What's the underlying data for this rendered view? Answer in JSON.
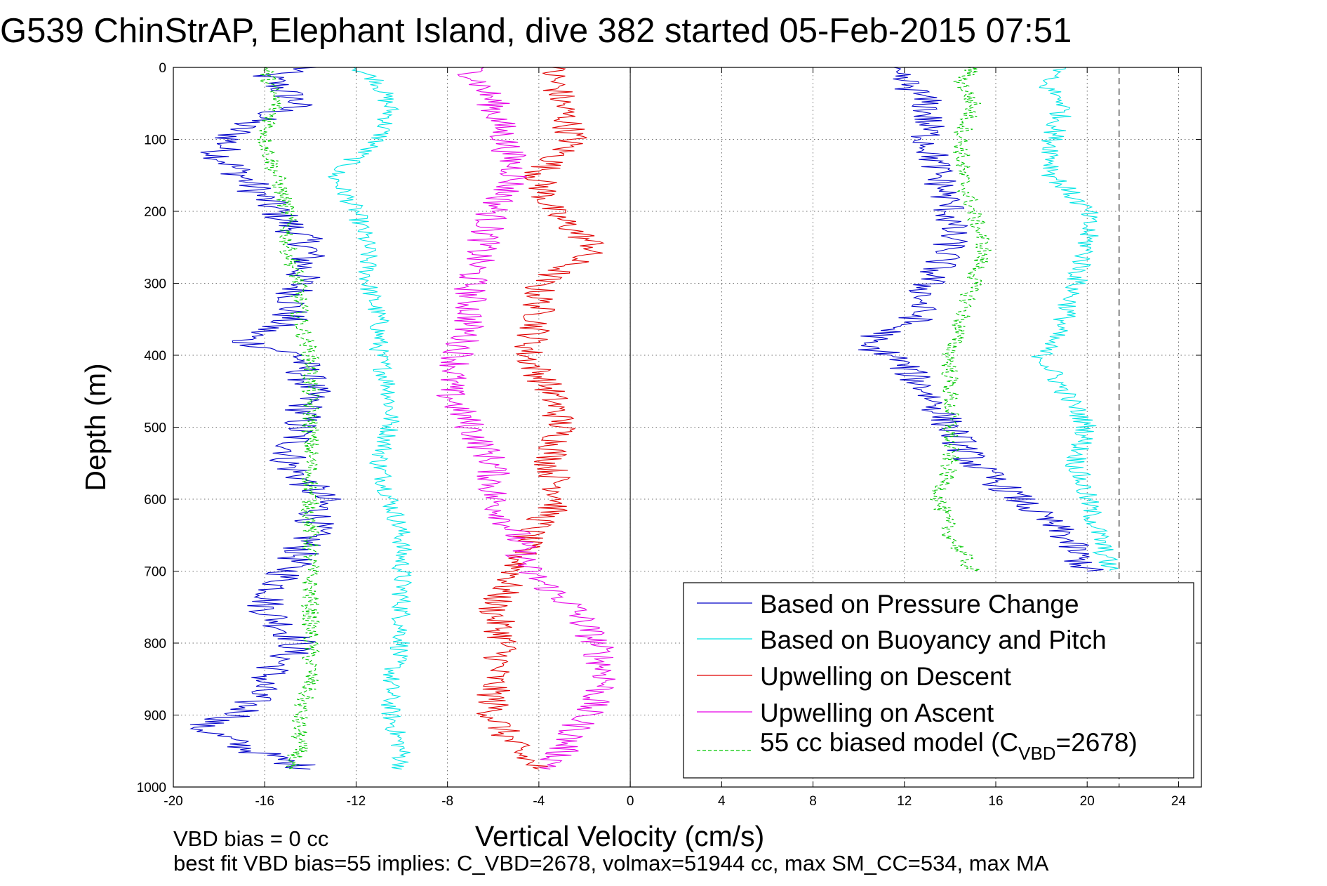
{
  "title": "G539 ChinStrAP, Elephant Island, dive 382 started 05-Feb-2015 07:51",
  "footer": {
    "line1": "VBD bias = 0 cc",
    "line2": "best fit VBD bias=55 implies: C_VBD=2678, volmax=51944 cc, max SM_CC=534, max MA"
  },
  "colors": {
    "pressure": "#0000c8",
    "buoyancy": "#00e5e5",
    "descent": "#e00000",
    "ascent": "#e600e6",
    "model": "#00c800"
  },
  "chart_data": {
    "type": "line",
    "title": "G539 ChinStrAP, Elephant Island, dive 382 started 05-Feb-2015 07:51",
    "xlabel": "Vertical Velocity (cm/s)",
    "ylabel": "Depth (m)",
    "xlim": [
      -20,
      25
    ],
    "ylim": [
      0,
      1000
    ],
    "y_reversed": true,
    "grid": true,
    "xticks": [
      "-20",
      "-16",
      "-12",
      "-8",
      "-4",
      "0",
      "4",
      "8",
      "12",
      "16",
      "20",
      "24"
    ],
    "xtick_values": [
      -20,
      -16,
      -12,
      -8,
      -4,
      0,
      4,
      8,
      12,
      16,
      20,
      24
    ],
    "yticks": [
      "0",
      "100",
      "200",
      "300",
      "400",
      "500",
      "600",
      "700",
      "800",
      "900",
      "1000"
    ],
    "ytick_values": [
      0,
      100,
      200,
      300,
      400,
      500,
      600,
      700,
      800,
      900,
      1000
    ],
    "reference_lines": [
      {
        "x": 0,
        "style": "solid"
      },
      {
        "x": 21.4,
        "style": "dashed"
      }
    ],
    "legend_position": "bottom-right",
    "legend": [
      {
        "label": "Based on Pressure Change",
        "series": "pressure"
      },
      {
        "label": "Based on Buoyancy and Pitch",
        "series": "buoyancy"
      },
      {
        "label": "Upwelling on Descent",
        "series": "descent"
      },
      {
        "label": "Upwelling on Ascent",
        "series": "ascent"
      },
      {
        "label": "55 cc biased model (C",
        "sub": "VBD",
        "tail": "=2678)",
        "series": "model"
      }
    ],
    "series": [
      {
        "key": "pressure-down",
        "color_key": "pressure",
        "jitter": 0.9,
        "depth": [
          0,
          10,
          50,
          80,
          120,
          150,
          200,
          250,
          300,
          350,
          380,
          400,
          450,
          500,
          550,
          600,
          650,
          700,
          750,
          800,
          850,
          900,
          915,
          950,
          975
        ],
        "values": [
          -14,
          -16,
          -14.5,
          -17,
          -18,
          -17,
          -15.5,
          -14,
          -14.5,
          -15,
          -17,
          -14.5,
          -14,
          -14.5,
          -15,
          -13.5,
          -14,
          -15,
          -16,
          -14.5,
          -16,
          -17,
          -19,
          -16.5,
          -14
        ]
      },
      {
        "key": "buoyancy-down",
        "color_key": "buoyancy",
        "jitter": 0.45,
        "depth": [
          0,
          20,
          60,
          100,
          150,
          200,
          250,
          300,
          350,
          400,
          450,
          500,
          550,
          600,
          650,
          700,
          750,
          800,
          850,
          900,
          950,
          975
        ],
        "values": [
          -12,
          -11,
          -10.5,
          -11,
          -13,
          -12,
          -11.5,
          -11.5,
          -11,
          -11,
          -10.5,
          -10.5,
          -11,
          -10.5,
          -10,
          -10,
          -10,
          -10,
          -10.5,
          -10.5,
          -10,
          -10
        ]
      },
      {
        "key": "descent",
        "color_key": "descent",
        "jitter": 0.75,
        "depth": [
          0,
          50,
          100,
          150,
          200,
          250,
          280,
          300,
          350,
          400,
          450,
          500,
          550,
          600,
          650,
          700,
          750,
          800,
          850,
          900,
          950,
          975
        ],
        "values": [
          -3.5,
          -3,
          -2.5,
          -4,
          -3.5,
          -1.5,
          -3,
          -4,
          -4,
          -4.5,
          -3.5,
          -3,
          -3.5,
          -3,
          -4.5,
          -5,
          -6,
          -5.5,
          -6,
          -6,
          -5,
          -4
        ]
      },
      {
        "key": "ascent",
        "color_key": "ascent",
        "jitter": 0.75,
        "depth": [
          0,
          50,
          100,
          150,
          200,
          250,
          300,
          350,
          400,
          450,
          500,
          550,
          600,
          650,
          700,
          750,
          800,
          850,
          900,
          950,
          975
        ],
        "values": [
          -7,
          -6,
          -5.5,
          -5,
          -6,
          -6.5,
          -7,
          -7,
          -7.5,
          -8,
          -7,
          -6,
          -6,
          -5,
          -4.5,
          -2.5,
          -1.5,
          -1,
          -2,
          -3,
          -3.5
        ]
      },
      {
        "key": "model-down",
        "color_key": "model",
        "jitter": 0.4,
        "depth": [
          0,
          50,
          100,
          150,
          200,
          250,
          300,
          350,
          400,
          450,
          500,
          550,
          600,
          650,
          700,
          750,
          800,
          850,
          900,
          950,
          975
        ],
        "values": [
          -16,
          -15.5,
          -16,
          -15.5,
          -15,
          -15,
          -14.5,
          -14.5,
          -14,
          -14,
          -14,
          -14,
          -14,
          -14,
          -14,
          -14,
          -14,
          -14,
          -14.5,
          -14.5,
          -15
        ]
      },
      {
        "key": "pressure-up",
        "color_key": "pressure",
        "jitter": 0.8,
        "depth": [
          0,
          20,
          50,
          100,
          150,
          200,
          250,
          300,
          350,
          385,
          400,
          450,
          500,
          550,
          600,
          650,
          700
        ],
        "values": [
          11,
          12,
          13,
          13,
          13.5,
          14,
          14,
          13,
          12.5,
          10,
          11.5,
          13,
          14,
          15,
          17,
          19,
          20
        ]
      },
      {
        "key": "buoyancy-up",
        "color_key": "buoyancy",
        "jitter": 0.5,
        "depth": [
          0,
          20,
          50,
          100,
          150,
          200,
          250,
          300,
          350,
          400,
          450,
          500,
          550,
          600,
          650,
          700
        ],
        "values": [
          19,
          18,
          19,
          18.5,
          18.5,
          20,
          20,
          19.5,
          19,
          18,
          19,
          20,
          19.5,
          20,
          20.5,
          21
        ]
      },
      {
        "key": "model-up",
        "color_key": "model",
        "jitter": 0.4,
        "depth": [
          0,
          20,
          50,
          100,
          150,
          200,
          250,
          300,
          350,
          400,
          450,
          500,
          550,
          600,
          650,
          700
        ],
        "values": [
          15,
          14.5,
          15,
          14.5,
          14.5,
          15,
          15.5,
          15,
          14.5,
          14,
          14,
          14,
          14,
          13.5,
          14,
          15
        ]
      },
      {
        "key": "surface-link",
        "color_key": "model",
        "jitter": 0,
        "depth": [
          0,
          0
        ],
        "values": [
          -12,
          11
        ]
      }
    ]
  }
}
